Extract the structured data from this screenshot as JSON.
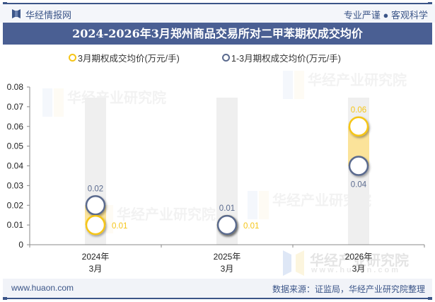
{
  "header": {
    "brand": "华经情报网",
    "slogan": "专业严谨 ● 客观科学"
  },
  "title": "2024-2026年3月郑州商品交易所对二甲苯期权成交均价",
  "legend": [
    {
      "label": "3月期权成交均价(万元/手)",
      "color": "#f5c518"
    },
    {
      "label": "1-3月期权成交均价(万元/手)",
      "color": "#5a6a8e"
    }
  ],
  "footer": {
    "website": "www.huaon.com",
    "source": "数据来源：证监局，华经产业研究院整理"
  },
  "watermark": {
    "text": "华经产业研究院",
    "url": "www.huaon.com"
  },
  "chart_data": {
    "type": "line",
    "title": "2024-2026年3月郑州商品交易所对二甲苯期权成交均价",
    "categories": [
      "2024年\n3月",
      "2025年\n3月",
      "2026年\n3月"
    ],
    "category_lines": [
      [
        "2024年",
        "3月"
      ],
      [
        "2025年",
        "3月"
      ],
      [
        "2026年",
        "3月"
      ]
    ],
    "series": [
      {
        "name": "3月期权成交均价(万元/手)",
        "values": [
          0.01,
          0.01,
          0.06
        ],
        "labels": [
          "0.01",
          "0.01",
          "0.06"
        ],
        "color": "#f5c518"
      },
      {
        "name": "1-3月期权成交均价(万元/手)",
        "values": [
          0.02,
          0.01,
          0.04
        ],
        "labels": [
          "0.02",
          "0.01",
          "0.04"
        ],
        "color": "#5a6a8e"
      }
    ],
    "xlabel": "",
    "ylabel": "",
    "ylim": [
      0,
      0.08
    ],
    "yticks": [
      "0",
      "0.01",
      "0.02",
      "0.03",
      "0.04",
      "0.05",
      "0.06",
      "0.07",
      "0.08"
    ],
    "grid": false,
    "legend_position": "top"
  }
}
